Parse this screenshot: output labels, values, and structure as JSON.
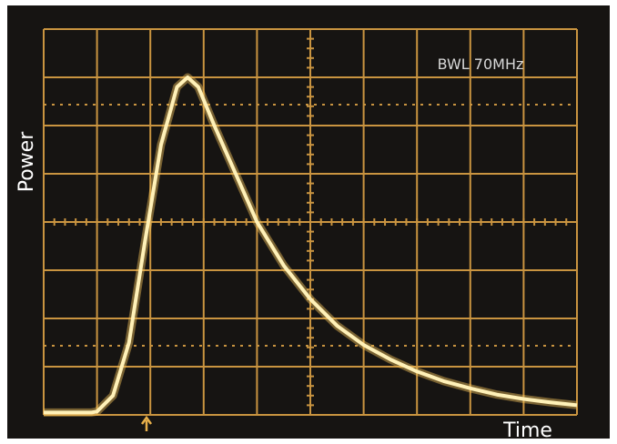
{
  "chart_data": {
    "type": "line",
    "annotation": "BWL 70MHz",
    "xlabel": "Time",
    "ylabel": "Power",
    "x": [
      0,
      0.9,
      1.0,
      1.3,
      1.6,
      1.9,
      2.2,
      2.5,
      2.7,
      2.9,
      3.2,
      3.6,
      4.0,
      4.5,
      5.0,
      5.5,
      6.0,
      6.5,
      7.0,
      7.5,
      8.0,
      8.5,
      9.0,
      9.5,
      10
    ],
    "series": [
      {
        "color": "#fff1b8",
        "values": [
          0.05,
          0.05,
          0.07,
          0.4,
          1.5,
          3.6,
          5.6,
          6.8,
          7.0,
          6.8,
          6.0,
          5.0,
          4.0,
          3.1,
          2.4,
          1.85,
          1.45,
          1.15,
          0.9,
          0.7,
          0.55,
          0.42,
          0.33,
          0.26,
          0.2
        ]
      }
    ],
    "xlim": [
      0,
      10
    ],
    "ylim": [
      0,
      8
    ],
    "xticks": [
      0,
      1,
      2,
      3,
      4,
      5,
      6,
      7,
      8,
      9,
      10
    ],
    "yticks": [
      0,
      1,
      2,
      3,
      4,
      5,
      6,
      7,
      8
    ],
    "grid": true,
    "grid_color": "#c99440"
  }
}
